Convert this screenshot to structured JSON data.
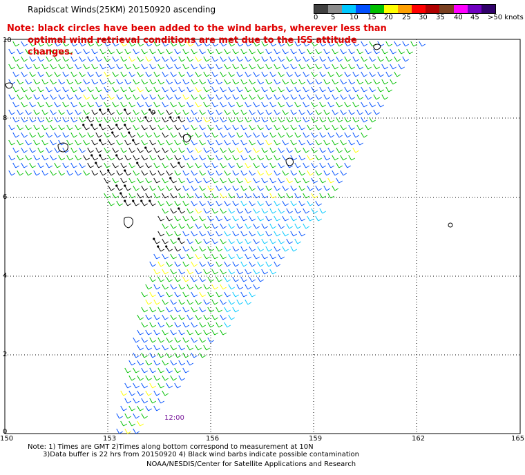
{
  "header": {
    "title": "Rapidscat Winds(25KM) 20150920 ascending",
    "note_line1": "Note: black circles have been added to the wind barbs, wherever less than",
    "note_line2": "optimal wind retrieval conditions are met due to the ISS attitude changes."
  },
  "speed_scale": {
    "labels": [
      "0",
      "5",
      "10",
      "15",
      "20",
      "25",
      "30",
      "35",
      "40",
      "45",
      ">50 knots"
    ],
    "colors": [
      "#404040",
      "#8c8c8c",
      "#00c8ff",
      "#0050ff",
      "#00c000",
      "#ffff00",
      "#ffa000",
      "#ff0000",
      "#b00000",
      "#7a4020",
      "#ff00ff",
      "#7000c0",
      "#30006a"
    ]
  },
  "map": {
    "lat_labels": [
      "10",
      "8",
      "6",
      "4",
      "2",
      "0"
    ],
    "lon_labels": [
      "150",
      "153",
      "156",
      "159",
      "162",
      "165"
    ],
    "time_label": "12:00"
  },
  "footer": {
    "note1": "Note: 1) Times are GMT 2)Times along bottom correspond to measurement at 10N",
    "note2": "3)Data buffer is 22 hrs from 20150920 4) Black wind barbs indicate possible contamination",
    "credit": "NOAA/NESDIS/Center for Satellite Applications and Research"
  }
}
